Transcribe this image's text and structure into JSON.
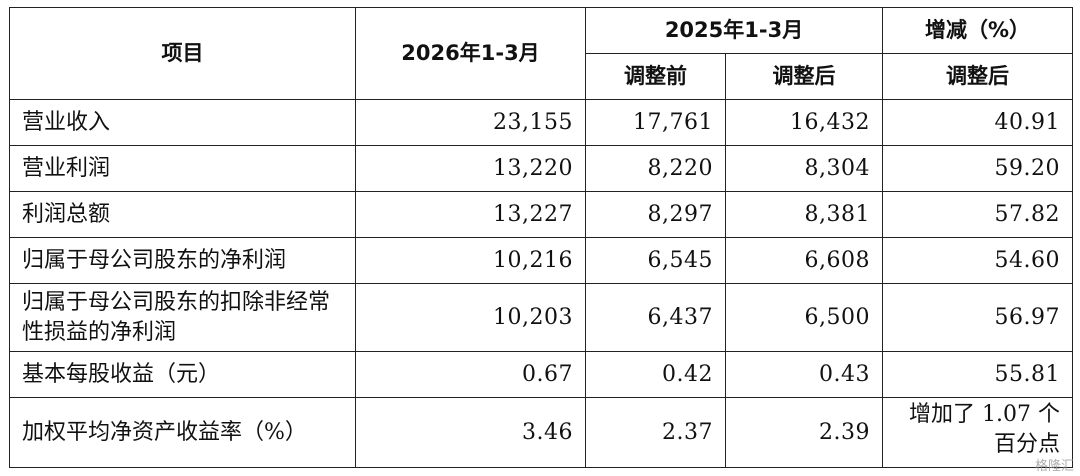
{
  "table": {
    "header": {
      "item": "项目",
      "period_current": "2026年1-3月",
      "period_prior": "2025年1-3月",
      "change": "增减（%）",
      "before_adjust": "调整前",
      "after_adjust": "调整后",
      "change_after_adjust": "调整后"
    },
    "rows": [
      {
        "label": "营业收入",
        "current": "23,155",
        "before": "17,761",
        "after": "16,432",
        "change": "40.91"
      },
      {
        "label": "营业利润",
        "current": "13,220",
        "before": "8,220",
        "after": "8,304",
        "change": "59.20"
      },
      {
        "label": "利润总额",
        "current": "13,227",
        "before": "8,297",
        "after": "8,381",
        "change": "57.82"
      },
      {
        "label": "归属于母公司股东的净利润",
        "current": "10,216",
        "before": "6,545",
        "after": "6,608",
        "change": "54.60"
      },
      {
        "label": "归属于母公司股东的扣除非经常性损益的净利润",
        "current": "10,203",
        "before": "6,437",
        "after": "6,500",
        "change": "56.97"
      },
      {
        "label": "基本每股收益（元）",
        "current": "0.67",
        "before": "0.42",
        "after": "0.43",
        "change": "55.81"
      },
      {
        "label": "加权平均净资产收益率（%）",
        "current": "3.46",
        "before": "2.37",
        "after": "2.39",
        "change": "增加了 1.07 个百分点"
      }
    ]
  },
  "watermark": "格隆汇"
}
